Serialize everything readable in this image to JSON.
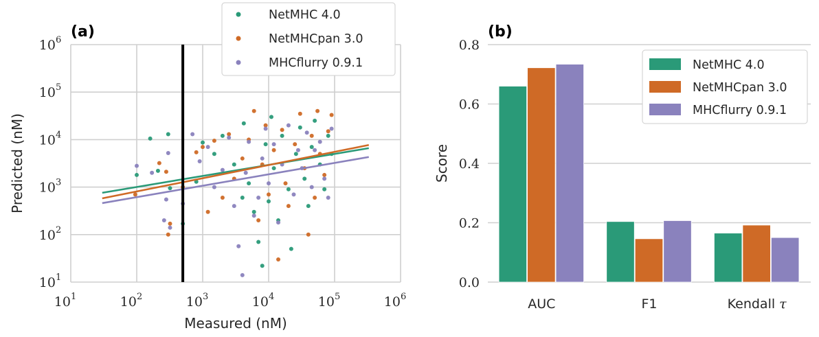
{
  "colors": {
    "netmhc": "#2a9a78",
    "netmhcpan": "#cf6a26",
    "mhcflurry": "#8a82bd",
    "grid": "#cfcfcf",
    "threshold": "#000000"
  },
  "chart_data": [
    {
      "type": "scatter",
      "panel_label": "(a)",
      "xlabel": "Measured (nM)",
      "ylabel": "Predicted (nM)",
      "xscale": "log",
      "yscale": "log",
      "xlim": [
        10,
        1000000
      ],
      "ylim": [
        10,
        1000000
      ],
      "x_ticks": [
        {
          "base": "10",
          "exp": "1"
        },
        {
          "base": "10",
          "exp": "2"
        },
        {
          "base": "10",
          "exp": "3"
        },
        {
          "base": "10",
          "exp": "4"
        },
        {
          "base": "10",
          "exp": "5"
        },
        {
          "base": "10",
          "exp": "6"
        }
      ],
      "y_ticks": [
        {
          "base": "10",
          "exp": "1"
        },
        {
          "base": "10",
          "exp": "2"
        },
        {
          "base": "10",
          "exp": "3"
        },
        {
          "base": "10",
          "exp": "4"
        },
        {
          "base": "10",
          "exp": "5"
        },
        {
          "base": "10",
          "exp": "6"
        }
      ],
      "grid": true,
      "legend_position": "top-right",
      "threshold_x": 500,
      "series": [
        {
          "name": "NetMHC 4.0",
          "fit": {
            "x": [
              30,
              330000
            ],
            "y": [
              760,
              6600
            ]
          },
          "points_sample": [
            [
              100,
              1800
            ],
            [
              160,
              10500
            ],
            [
              210,
              2200
            ],
            [
              300,
              13000
            ],
            [
              320,
              950
            ],
            [
              500,
              170
            ],
            [
              800,
              1300
            ],
            [
              1000,
              8700
            ],
            [
              1500,
              5000
            ],
            [
              2000,
              12000
            ],
            [
              3000,
              3000
            ],
            [
              4000,
              600
            ],
            [
              4200,
              22000
            ],
            [
              5000,
              1200
            ],
            [
              6000,
              300
            ],
            [
              7000,
              70
            ],
            [
              8000,
              22
            ],
            [
              9000,
              8000
            ],
            [
              10000,
              500
            ],
            [
              11000,
              30000
            ],
            [
              12000,
              2500
            ],
            [
              14000,
              200
            ],
            [
              16000,
              12000
            ],
            [
              20000,
              900
            ],
            [
              22000,
              50
            ],
            [
              26000,
              5000
            ],
            [
              30000,
              18000
            ],
            [
              35000,
              1500
            ],
            [
              40000,
              400
            ],
            [
              45000,
              7000
            ],
            [
              50000,
              25000
            ],
            [
              60000,
              3000
            ],
            [
              70000,
              900
            ],
            [
              80000,
              12000
            ],
            [
              90000,
              5000
            ]
          ]
        },
        {
          "name": "NetMHCpan 3.0",
          "fit": {
            "x": [
              30,
              330000
            ],
            "y": [
              580,
              7700
            ]
          },
          "points_sample": [
            [
              95,
              700
            ],
            [
              220,
              3200
            ],
            [
              280,
              2100
            ],
            [
              300,
              100
            ],
            [
              320,
              170
            ],
            [
              500,
              1000
            ],
            [
              800,
              5400
            ],
            [
              1000,
              7000
            ],
            [
              1200,
              300
            ],
            [
              1500,
              9500
            ],
            [
              2000,
              600
            ],
            [
              2500,
              13000
            ],
            [
              3000,
              1500
            ],
            [
              4000,
              4000
            ],
            [
              5000,
              10000
            ],
            [
              6000,
              40000
            ],
            [
              7000,
              200
            ],
            [
              8000,
              3000
            ],
            [
              9000,
              20000
            ],
            [
              10000,
              700
            ],
            [
              12000,
              6000
            ],
            [
              14000,
              30
            ],
            [
              16000,
              16000
            ],
            [
              18000,
              1200
            ],
            [
              20000,
              400
            ],
            [
              25000,
              8000
            ],
            [
              30000,
              35000
            ],
            [
              35000,
              2500
            ],
            [
              40000,
              100
            ],
            [
              45000,
              12000
            ],
            [
              50000,
              600
            ],
            [
              55000,
              40000
            ],
            [
              60000,
              5000
            ],
            [
              70000,
              1800
            ],
            [
              80000,
              15000
            ],
            [
              90000,
              33000
            ]
          ]
        },
        {
          "name": "MHCflurry 0.9.1",
          "fit": {
            "x": [
              30,
              330000
            ],
            "y": [
              460,
              4300
            ]
          },
          "points_sample": [
            [
              100,
              2800
            ],
            [
              170,
              2000
            ],
            [
              260,
              200
            ],
            [
              280,
              550
            ],
            [
              300,
              5200
            ],
            [
              320,
              140
            ],
            [
              500,
              450
            ],
            [
              700,
              13000
            ],
            [
              900,
              3500
            ],
            [
              1200,
              7000
            ],
            [
              1500,
              1000
            ],
            [
              2000,
              2300
            ],
            [
              2500,
              11000
            ],
            [
              3000,
              400
            ],
            [
              3500,
              57
            ],
            [
              4000,
              14
            ],
            [
              4500,
              2000
            ],
            [
              5000,
              9000
            ],
            [
              6000,
              250
            ],
            [
              7000,
              600
            ],
            [
              8000,
              4000
            ],
            [
              9000,
              17000
            ],
            [
              10000,
              1200
            ],
            [
              12000,
              8000
            ],
            [
              14000,
              180
            ],
            [
              16000,
              3000
            ],
            [
              20000,
              20000
            ],
            [
              24000,
              700
            ],
            [
              28000,
              6000
            ],
            [
              32000,
              2500
            ],
            [
              38000,
              14000
            ],
            [
              45000,
              1000
            ],
            [
              50000,
              6000
            ],
            [
              60000,
              9000
            ],
            [
              70000,
              1500
            ],
            [
              80000,
              600
            ],
            [
              90000,
              17000
            ]
          ]
        }
      ]
    },
    {
      "type": "bar",
      "panel_label": "(b)",
      "xlabel": "",
      "ylabel": "Score",
      "ylim": [
        0,
        0.8
      ],
      "y_ticks": [
        "0.0",
        "0.2",
        "0.4",
        "0.6",
        "0.8"
      ],
      "grid": true,
      "legend_position": "top-right",
      "categories": [
        {
          "label": "AUC",
          "math": ""
        },
        {
          "label": "F1",
          "math": ""
        },
        {
          "label": "Kendall ",
          "math": "τ"
        }
      ],
      "series": [
        {
          "name": "NetMHC 4.0",
          "values": [
            0.66,
            0.204,
            0.165
          ]
        },
        {
          "name": "NetMHCpan 3.0",
          "values": [
            0.722,
            0.146,
            0.192
          ]
        },
        {
          "name": "MHCflurry 0.9.1",
          "values": [
            0.734,
            0.207,
            0.15
          ]
        }
      ]
    }
  ]
}
